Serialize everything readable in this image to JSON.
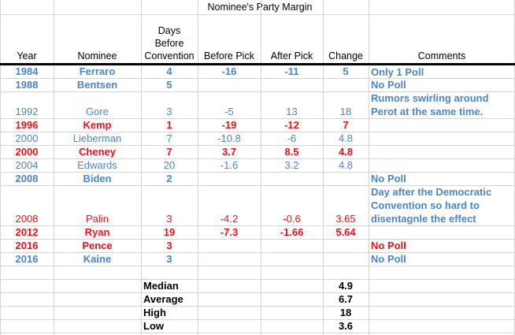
{
  "headers": {
    "year": "Year",
    "nominee": "Nominee",
    "days_line1": "Days",
    "days_line2": "Before",
    "days_line3": "Convention",
    "group": "Nominee's Party Margin",
    "before": "Before Pick",
    "after": "After Pick",
    "change": "Change",
    "comments": "Comments"
  },
  "rows": [
    {
      "year": "1984",
      "nominee": "Ferraro",
      "days": "4",
      "before": "-16",
      "after": "-11",
      "change": "5",
      "comment": "Only 1 Poll",
      "party": "dem",
      "bold": true,
      "comment_color": "blue"
    },
    {
      "year": "1988",
      "nominee": "Bentsen",
      "days": "5",
      "before": "",
      "after": "",
      "change": "",
      "comment": "No Poll",
      "party": "dem",
      "bold": true,
      "comment_color": "blue"
    },
    {
      "year": "1992",
      "nominee": "Gore",
      "days": "3",
      "before": "-5",
      "after": "13",
      "change": "18",
      "comment": "Rumors swirling around Perot at the same time.",
      "party": "dem",
      "bold": false,
      "comment_color": "blue"
    },
    {
      "year": "1996",
      "nominee": "Kemp",
      "days": "1",
      "before": "-19",
      "after": "-12",
      "change": "7",
      "comment": "",
      "party": "rep",
      "bold": true,
      "comment_color": "red"
    },
    {
      "year": "2000",
      "nominee": "Lieberman",
      "days": "7",
      "before": "-10.8",
      "after": "-6",
      "change": "4.8",
      "comment": "",
      "party": "dem",
      "bold": false,
      "comment_color": "blue"
    },
    {
      "year": "2000",
      "nominee": "Cheney",
      "days": "7",
      "before": "3.7",
      "after": "8.5",
      "change": "4.8",
      "comment": "",
      "party": "rep",
      "bold": true,
      "comment_color": "red"
    },
    {
      "year": "2004",
      "nominee": "Edwards",
      "days": "20",
      "before": "-1.6",
      "after": "3.2",
      "change": "4.8",
      "comment": "",
      "party": "dem",
      "bold": false,
      "comment_color": "blue"
    },
    {
      "year": "2008",
      "nominee": "Biden",
      "days": "2",
      "before": "",
      "after": "",
      "change": "",
      "comment": "No Poll",
      "party": "dem",
      "bold": true,
      "comment_color": "blue"
    },
    {
      "year": "2008",
      "nominee": "Palin",
      "days": "3",
      "before": "-4.2",
      "after": "-0.6",
      "change": "3.65",
      "comment": "Day after the Democratic Convention so hard to disentagnle the effect",
      "party": "rep",
      "bold": false,
      "comment_color": "blue"
    },
    {
      "year": "2012",
      "nominee": "Ryan",
      "days": "19",
      "before": "-7.3",
      "after": "-1.66",
      "change": "5.64",
      "comment": "",
      "party": "rep",
      "bold": true,
      "comment_color": "red"
    },
    {
      "year": "2016",
      "nominee": "Pence",
      "days": "3",
      "before": "",
      "after": "",
      "change": "",
      "comment": "No Poll",
      "party": "rep",
      "bold": true,
      "comment_color": "red"
    },
    {
      "year": "2016",
      "nominee": "Kaine",
      "days": "3",
      "before": "",
      "after": "",
      "change": "",
      "comment": "No Poll",
      "party": "dem",
      "bold": true,
      "comment_color": "blue"
    }
  ],
  "summary": [
    {
      "label": "Median",
      "value": "4.9"
    },
    {
      "label": "Average",
      "value": "6.7"
    },
    {
      "label": "High",
      "value": "18"
    },
    {
      "label": "Low",
      "value": "3.6"
    }
  ],
  "colors": {
    "dem": "#4a86c8",
    "rep": "#e8141c",
    "gridline": "#d4d4d4"
  }
}
